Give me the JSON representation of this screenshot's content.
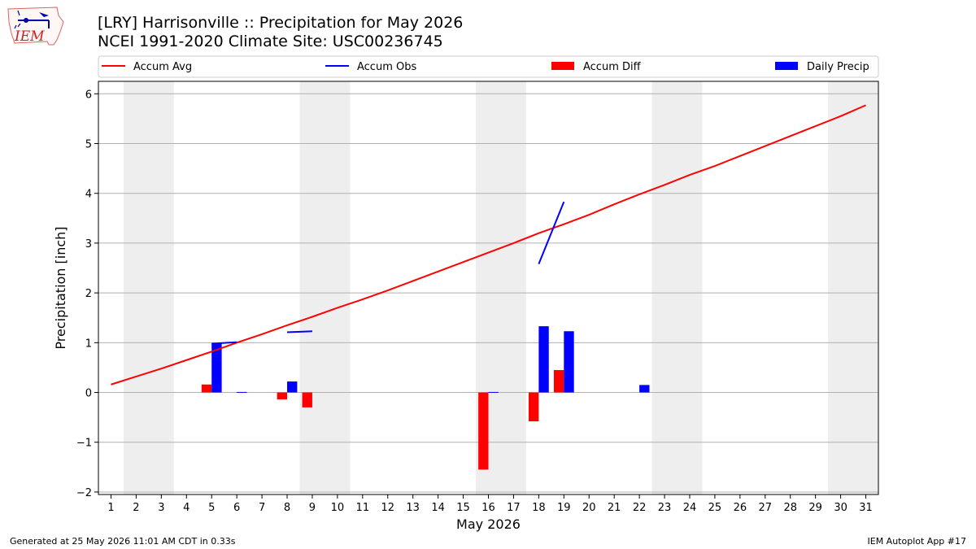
{
  "header": {
    "title": "[LRY] Harrisonville :: Precipitation for May 2026",
    "subtitle": "NCEI 1991-2020 Climate Site: USC00236745",
    "logo_text": "IEM"
  },
  "footer": {
    "generated": "Generated at 25 May 2026 11:01 AM CDT in 0.33s",
    "app": "IEM Autoplot App #17"
  },
  "colors": {
    "avg": "#ff0000",
    "obs": "#0000ff",
    "diff": "#ff0000",
    "daily": "#0000ff",
    "weekend": "#eeeeee",
    "grid": "#b0b0b0"
  },
  "chart_data": {
    "type": "bar",
    "title": "[LRY] Harrisonville :: Precipitation for May 2026",
    "subtitle": "NCEI 1991-2020 Climate Site: USC00236745",
    "xlabel": "May 2026",
    "ylabel": "Precipitation [inch]",
    "xlim": [
      0.5,
      31.5
    ],
    "ylim": [
      -2.05,
      6.25
    ],
    "x_ticks": [
      1,
      2,
      3,
      4,
      5,
      6,
      7,
      8,
      9,
      10,
      11,
      12,
      13,
      14,
      15,
      16,
      17,
      18,
      19,
      20,
      21,
      22,
      23,
      24,
      25,
      26,
      27,
      28,
      29,
      30,
      31
    ],
    "y_ticks": [
      -2,
      -1,
      0,
      1,
      2,
      3,
      4,
      5,
      6
    ],
    "y_tick_labels": [
      "−2",
      "−1",
      "0",
      "1",
      "2",
      "3",
      "4",
      "5",
      "6"
    ],
    "grid": "y",
    "legend": {
      "position": "top",
      "entries": [
        "Accum Avg",
        "Accum Obs",
        "Accum Diff",
        "Daily Precip"
      ]
    },
    "weekend_spans": [
      [
        1.5,
        3.5
      ],
      [
        8.5,
        10.5
      ],
      [
        15.5,
        17.5
      ],
      [
        22.5,
        24.5
      ],
      [
        29.5,
        31.5
      ]
    ],
    "accum_avg": {
      "name": "Accum Avg",
      "x": [
        1,
        2,
        3,
        4,
        5,
        6,
        7,
        8,
        9,
        10,
        11,
        12,
        13,
        14,
        15,
        16,
        17,
        18,
        19,
        20,
        21,
        22,
        23,
        24,
        25,
        26,
        27,
        28,
        29,
        30,
        31
      ],
      "y": [
        0.16,
        0.32,
        0.48,
        0.65,
        0.82,
        1.0,
        1.17,
        1.35,
        1.52,
        1.7,
        1.87,
        2.05,
        2.24,
        2.43,
        2.62,
        2.81,
        3.0,
        3.2,
        3.38,
        3.57,
        3.78,
        3.98,
        4.17,
        4.37,
        4.55,
        4.75,
        4.95,
        5.15,
        5.35,
        5.55,
        5.77
      ]
    },
    "accum_obs": {
      "name": "Accum Obs",
      "segments": [
        {
          "x": [
            5,
            6
          ],
          "y": [
            0.98,
            1.01
          ]
        },
        {
          "x": [
            8,
            9
          ],
          "y": [
            1.21,
            1.23
          ]
        },
        {
          "x": [
            18,
            19
          ],
          "y": [
            2.58,
            3.83
          ]
        }
      ]
    },
    "accum_diff": {
      "name": "Accum Diff",
      "x": [
        5,
        8,
        9,
        16,
        18,
        19
      ],
      "y": [
        0.16,
        -0.14,
        -0.3,
        -1.55,
        -0.58,
        0.45
      ]
    },
    "daily_precip": {
      "name": "Daily Precip",
      "x": [
        5,
        6,
        8,
        16,
        18,
        19,
        22
      ],
      "y": [
        0.98,
        0.01,
        0.22,
        0.01,
        1.33,
        1.23,
        0.15
      ]
    }
  }
}
